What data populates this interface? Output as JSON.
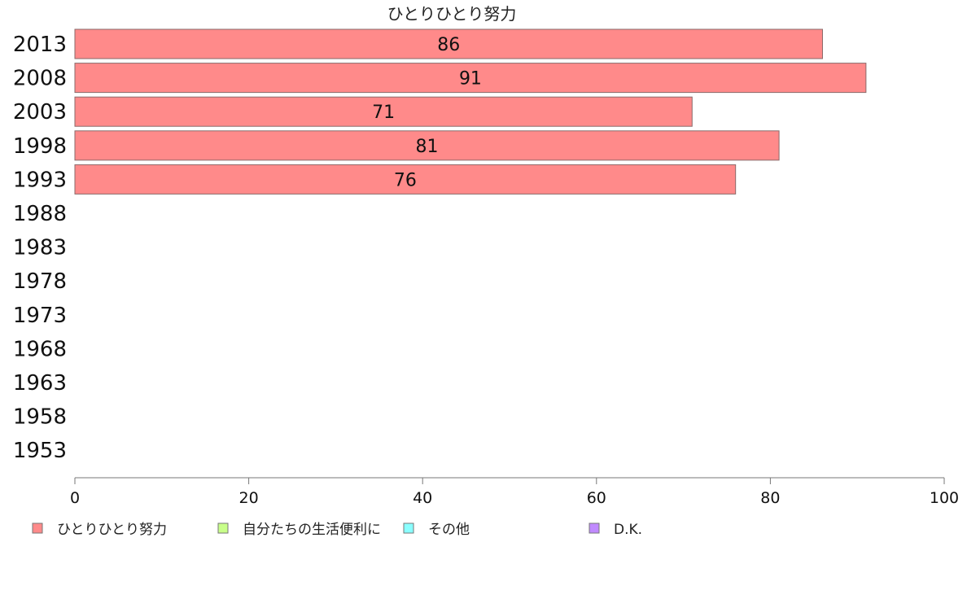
{
  "chart_data": {
    "type": "bar",
    "orientation": "horizontal",
    "title": "ひとりひとり努力",
    "categories": [
      "2013",
      "2008",
      "2003",
      "1998",
      "1993",
      "1988",
      "1983",
      "1978",
      "1973",
      "1968",
      "1963",
      "1958",
      "1953"
    ],
    "series": [
      {
        "name": "ひとりひとり努力",
        "values": [
          86,
          91,
          71,
          81,
          76,
          null,
          null,
          null,
          null,
          null,
          null,
          null,
          null
        ],
        "color": "#ff8a8a"
      },
      {
        "name": "自分たちの生活便利に",
        "values": [
          null,
          null,
          null,
          null,
          null,
          null,
          null,
          null,
          null,
          null,
          null,
          null,
          null
        ],
        "color": "#c8ff8a"
      },
      {
        "name": "その他",
        "values": [
          null,
          null,
          null,
          null,
          null,
          null,
          null,
          null,
          null,
          null,
          null,
          null,
          null
        ],
        "color": "#8affff"
      },
      {
        "name": "D.K.",
        "values": [
          null,
          null,
          null,
          null,
          null,
          null,
          null,
          null,
          null,
          null,
          null,
          null,
          null
        ],
        "color": "#c08aff"
      }
    ],
    "data_labels": [
      "86",
      "91",
      "71",
      "81",
      "76"
    ],
    "xlim": [
      0,
      100
    ],
    "xticks": [
      "0",
      "20",
      "40",
      "60",
      "80",
      "100"
    ],
    "grid": false,
    "legend_position": "bottom"
  }
}
